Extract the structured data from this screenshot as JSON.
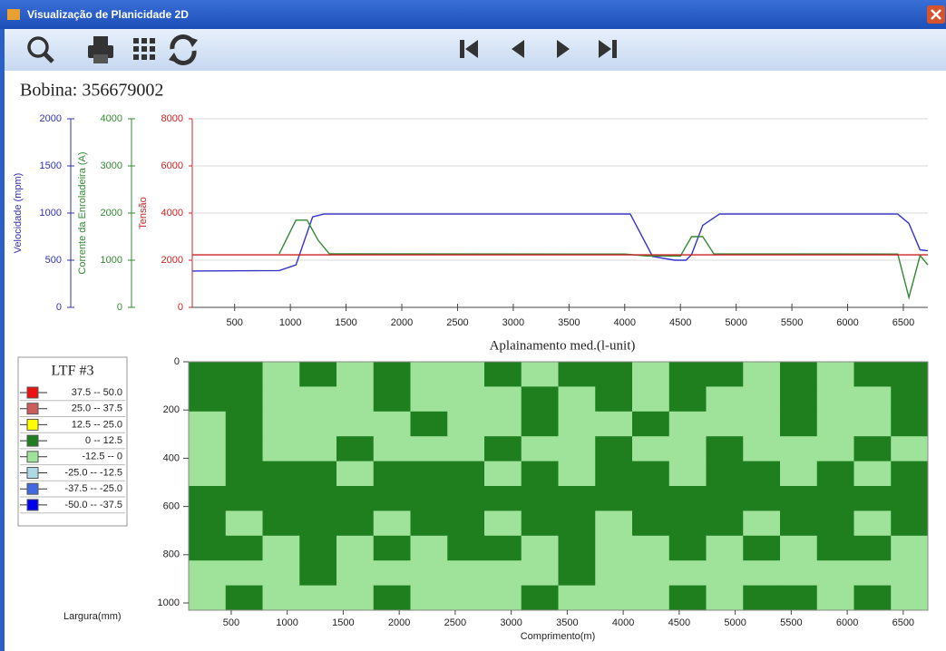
{
  "window": {
    "title": "Visualização de Planicidade 2D"
  },
  "header": {
    "coil_label": "Bobina: 356679002"
  },
  "chart_data": [
    {
      "type": "line",
      "xlim": [
        120,
        6720
      ],
      "xticks": [
        500,
        1000,
        1500,
        2000,
        2500,
        3000,
        3500,
        4000,
        4500,
        5000,
        5500,
        6000,
        6500
      ],
      "ylabel": "Velocidade (mpm)",
      "ylim": [
        0,
        2000
      ],
      "yticks": [
        0,
        500,
        1000,
        1500,
        2000
      ],
      "ycolor": "#3333aa",
      "y2label": "Corrente da Enroladeira (A)",
      "y2lim": [
        0,
        4000
      ],
      "y2ticks": [
        0,
        1000,
        2000,
        3000,
        4000
      ],
      "y2color": "#338833",
      "y3label": "Tensão",
      "y3lim": [
        0,
        8000
      ],
      "y3ticks": [
        0,
        2000,
        4000,
        6000,
        8000
      ],
      "y3color": "#cc2222",
      "grid": true,
      "series": [
        {
          "color": "#3333cc",
          "axis": "y",
          "x": [
            120,
            900,
            1050,
            1200,
            1300,
            4050,
            4250,
            4450,
            4550,
            4600,
            4700,
            4850,
            6450,
            6550,
            6650,
            6720
          ],
          "values": [
            385,
            390,
            450,
            960,
            990,
            990,
            540,
            500,
            500,
            560,
            870,
            990,
            990,
            890,
            610,
            600
          ]
        },
        {
          "color": "#338833",
          "axis": "y2",
          "x": [
            900,
            1050,
            1150,
            1250,
            1350,
            4000,
            4200,
            4500,
            4600,
            4700,
            4800,
            6450,
            6550,
            6650,
            6720
          ],
          "values": [
            1135,
            1850,
            1850,
            1420,
            1135,
            1130,
            1090,
            1090,
            1500,
            1500,
            1135,
            1130,
            210,
            1100,
            900
          ]
        },
        {
          "color": "#cc2222",
          "axis": "y3",
          "x": [
            120,
            6720
          ],
          "values": [
            2230,
            2230
          ]
        }
      ]
    },
    {
      "type": "heatmap",
      "title": "Aplainamento med.(l-unit)",
      "xlabel": "Comprimento(m)",
      "ylabel": "Largura(mm)",
      "xlim": [
        120,
        6720
      ],
      "xticks": [
        500,
        1000,
        1500,
        2000,
        2500,
        3000,
        3500,
        4000,
        4500,
        5000,
        5500,
        6000,
        6500
      ],
      "ylim": [
        0,
        1030
      ],
      "yticks": [
        0,
        200,
        400,
        600,
        800,
        1000
      ],
      "legend": {
        "title": "LTF #3",
        "bounds": [
          50.0,
          37.5,
          25.0,
          12.5,
          0,
          -12.5,
          -25.0,
          -37.5,
          -50.0
        ],
        "items": [
          {
            "label": "37.5 -- 50.0",
            "color": "#ee1111"
          },
          {
            "label": "25.0 -- 37.5",
            "color": "#cd5c5c"
          },
          {
            "label": "12.5 -- 25.0",
            "color": "#ffff00"
          },
          {
            "label": "0 -- 12.5",
            "color": "#1f7f1f"
          },
          {
            "label": "-12.5 -- 0",
            "color": "#9fe29a"
          },
          {
            "label": "-25.0 -- -12.5",
            "color": "#add8e6"
          },
          {
            "label": "-37.5 -- -25.0",
            "color": "#4169e1"
          },
          {
            "label": "-50.0 -- -37.5",
            "color": "#0000ee"
          }
        ]
      },
      "z": [
        [
          6,
          6,
          -6,
          6,
          -6,
          6,
          -6,
          -6,
          6,
          -6,
          6,
          6,
          -6,
          6,
          6,
          -6,
          6,
          -6,
          6,
          6
        ],
        [
          6,
          6,
          -6,
          -6,
          -6,
          6,
          -6,
          -6,
          -6,
          6,
          -6,
          6,
          -6,
          6,
          -6,
          -6,
          6,
          -6,
          -6,
          6
        ],
        [
          -6,
          6,
          -6,
          -6,
          -6,
          -6,
          6,
          -6,
          -6,
          6,
          -6,
          -6,
          6,
          -6,
          -6,
          -6,
          6,
          -6,
          -6,
          6
        ],
        [
          -6,
          6,
          -6,
          -6,
          6,
          -6,
          -6,
          -6,
          6,
          -6,
          -6,
          6,
          -6,
          -6,
          6,
          -6,
          -6,
          -6,
          6,
          -6
        ],
        [
          -6,
          6,
          6,
          6,
          -6,
          6,
          6,
          6,
          -6,
          6,
          -6,
          6,
          6,
          -6,
          6,
          6,
          -6,
          6,
          -6,
          6
        ],
        [
          6,
          6,
          6,
          6,
          6,
          6,
          6,
          6,
          6,
          6,
          6,
          6,
          6,
          6,
          6,
          6,
          6,
          6,
          6,
          6
        ],
        [
          6,
          -6,
          6,
          6,
          6,
          -6,
          6,
          6,
          -6,
          6,
          6,
          -6,
          6,
          6,
          6,
          -6,
          6,
          6,
          -6,
          6
        ],
        [
          6,
          6,
          -6,
          6,
          -6,
          6,
          -6,
          6,
          6,
          -6,
          6,
          -6,
          -6,
          6,
          -6,
          6,
          -6,
          6,
          6,
          -6
        ],
        [
          -6,
          -6,
          -6,
          6,
          -6,
          -6,
          -6,
          -6,
          -6,
          -6,
          6,
          -6,
          -6,
          -6,
          -6,
          -6,
          -6,
          -6,
          -6,
          -6
        ],
        [
          -6,
          6,
          -6,
          -6,
          -6,
          6,
          -6,
          -6,
          -6,
          6,
          -6,
          -6,
          -6,
          6,
          -6,
          6,
          6,
          -6,
          6,
          -6
        ]
      ]
    }
  ]
}
